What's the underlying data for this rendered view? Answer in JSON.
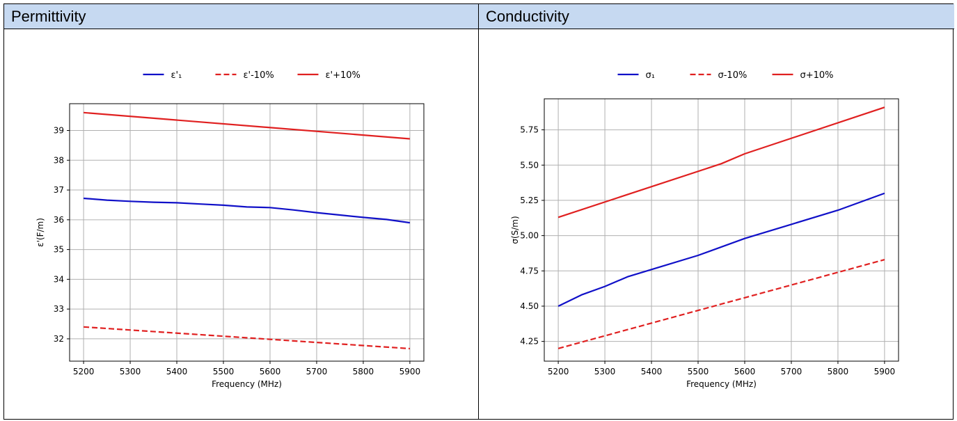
{
  "panels": [
    {
      "header": "Permittivity"
    },
    {
      "header": "Conductivity"
    }
  ],
  "colors": {
    "blue": "#1010c8",
    "red": "#e02020",
    "grid": "#b0b0b0",
    "header_bg": "#c6d9f1"
  },
  "chart_data": [
    {
      "type": "line",
      "xlabel": "Frequency (MHz)",
      "ylabel": "ε'(F/m)",
      "xlim": [
        5170,
        5930
      ],
      "ylim": [
        31.25,
        39.9
      ],
      "xticks": [
        5200,
        5300,
        5400,
        5500,
        5600,
        5700,
        5800,
        5900
      ],
      "yticks": [
        32,
        33,
        34,
        35,
        36,
        37,
        38,
        39
      ],
      "grid": true,
      "legend_position": "top-center",
      "series": [
        {
          "name": "ε'₁",
          "style": "solid",
          "color": "#1010c8",
          "x": [
            5200,
            5250,
            5300,
            5350,
            5400,
            5450,
            5500,
            5550,
            5600,
            5650,
            5700,
            5750,
            5800,
            5850,
            5900
          ],
          "y": [
            36.72,
            36.66,
            36.62,
            36.59,
            36.57,
            36.53,
            36.49,
            36.43,
            36.41,
            36.33,
            36.24,
            36.16,
            36.08,
            36.01,
            35.9
          ]
        },
        {
          "name": "ε'-10%",
          "style": "dashed",
          "color": "#e02020",
          "x": [
            5200,
            5900
          ],
          "y": [
            32.4,
            31.67
          ]
        },
        {
          "name": "ε'+10%",
          "style": "solid",
          "color": "#e02020",
          "x": [
            5200,
            5900
          ],
          "y": [
            39.6,
            38.72
          ]
        }
      ]
    },
    {
      "type": "line",
      "xlabel": "Frequency (MHz)",
      "ylabel": "σ(S/m)",
      "xlim": [
        5170,
        5930
      ],
      "ylim": [
        4.11,
        5.97
      ],
      "xticks": [
        5200,
        5300,
        5400,
        5500,
        5600,
        5700,
        5800,
        5900
      ],
      "yticks": [
        4.25,
        4.5,
        4.75,
        5.0,
        5.25,
        5.5,
        5.75
      ],
      "ytick_labels": [
        "4.25",
        "4.50",
        "4.75",
        "5.00",
        "5.25",
        "5.50",
        "5.75"
      ],
      "grid": true,
      "legend_position": "top-center",
      "series": [
        {
          "name": "σ₁",
          "style": "solid",
          "color": "#1010c8",
          "x": [
            5200,
            5250,
            5300,
            5350,
            5400,
            5500,
            5600,
            5700,
            5800,
            5900
          ],
          "y": [
            4.5,
            4.58,
            4.64,
            4.71,
            4.76,
            4.86,
            4.98,
            5.08,
            5.18,
            5.3
          ]
        },
        {
          "name": "σ-10%",
          "style": "dashed",
          "color": "#e02020",
          "x": [
            5200,
            5900
          ],
          "y": [
            4.2,
            4.83
          ]
        },
        {
          "name": "σ+10%",
          "style": "solid",
          "color": "#e02020",
          "x": [
            5200,
            5550,
            5600,
            5900
          ],
          "y": [
            5.13,
            5.51,
            5.58,
            5.91
          ]
        }
      ]
    }
  ]
}
